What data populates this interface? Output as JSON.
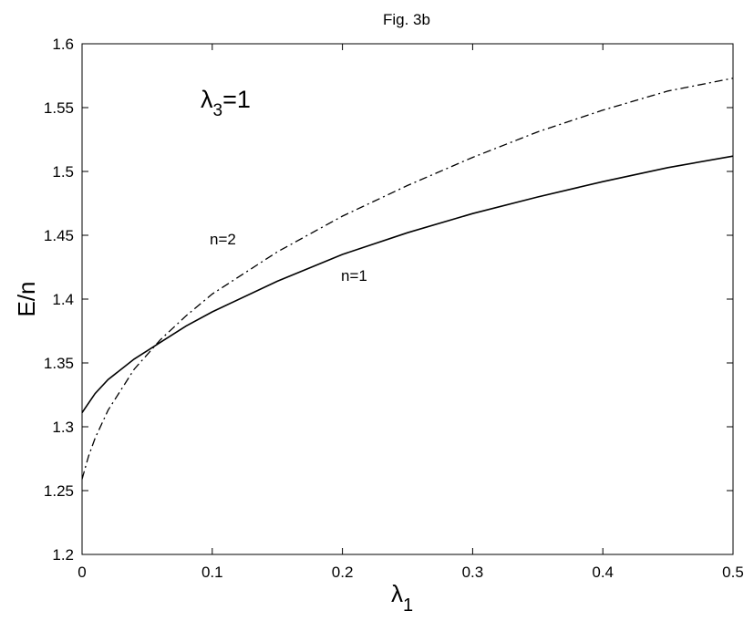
{
  "chart_data": {
    "type": "line",
    "title": "Fig. 3b",
    "xlabel": "λ",
    "xlabel_sub": "1",
    "ylabel": "E/n",
    "xlim": [
      0,
      0.5
    ],
    "ylim": [
      1.2,
      1.6
    ],
    "x_ticks": [
      "0",
      "0.1",
      "0.2",
      "0.3",
      "0.4",
      "0.5"
    ],
    "y_ticks": [
      "1.2",
      "1.25",
      "1.3",
      "1.35",
      "1.4",
      "1.45",
      "1.5",
      "1.55",
      "1.6"
    ],
    "grid": false,
    "series": [
      {
        "name": "n=1",
        "style": "solid",
        "x": [
          0,
          0.01,
          0.02,
          0.04,
          0.06,
          0.08,
          0.1,
          0.15,
          0.2,
          0.25,
          0.3,
          0.35,
          0.4,
          0.45,
          0.5
        ],
        "y": [
          1.311,
          1.326,
          1.337,
          1.353,
          1.366,
          1.379,
          1.39,
          1.414,
          1.435,
          1.452,
          1.467,
          1.48,
          1.492,
          1.503,
          1.512
        ]
      },
      {
        "name": "n=2",
        "style": "dashdot",
        "x": [
          0,
          0.005,
          0.01,
          0.02,
          0.04,
          0.06,
          0.08,
          0.1,
          0.15,
          0.2,
          0.25,
          0.3,
          0.35,
          0.4,
          0.45,
          0.5
        ],
        "y": [
          1.259,
          1.277,
          1.291,
          1.313,
          1.345,
          1.368,
          1.387,
          1.404,
          1.437,
          1.465,
          1.489,
          1.511,
          1.531,
          1.548,
          1.563,
          1.573
        ]
      }
    ],
    "annotations": {
      "lambda_label": "λ",
      "lambda_sub": "3",
      "lambda_eq": "=1",
      "label_n2": "n=2",
      "label_n1": "n=1"
    }
  }
}
